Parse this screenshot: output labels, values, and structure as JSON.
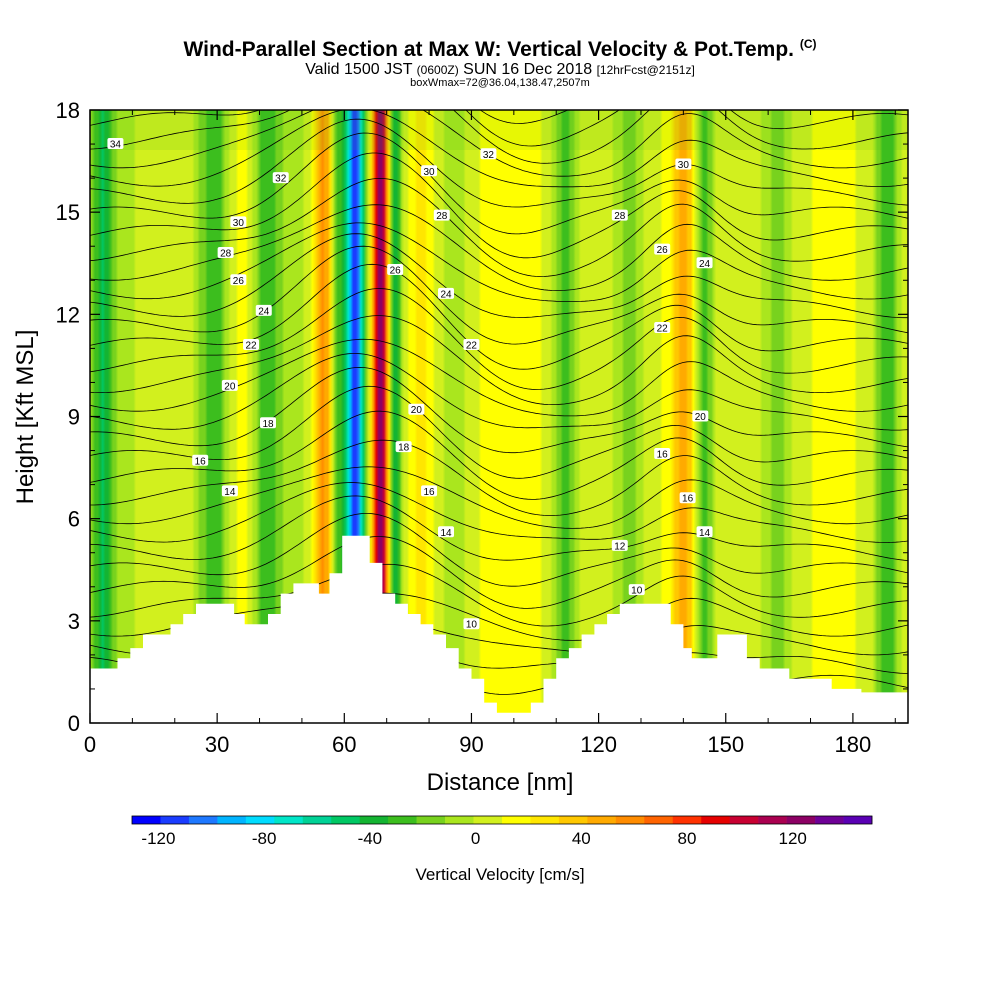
{
  "chart_data": {
    "type": "heatmap",
    "title": "Wind-Parallel Section at Max W: Vertical Velocity & Pot.Temp.",
    "title_mark": "(C)",
    "subtitle_main_a": "Valid 1500 JST",
    "subtitle_small_a": "(0600Z)",
    "subtitle_main_b": "SUN 16 Dec 2018",
    "subtitle_small_b": "[12hrFcst@2151z]",
    "subtitle_line2": "boxWmax=72@36.04,138.47,2507m",
    "xlabel": "Distance [nm]",
    "ylabel": "Height [Kft MSL]",
    "xlim": [
      0,
      193
    ],
    "ylim": [
      0,
      18
    ],
    "x_ticks": [
      "0",
      "30",
      "60",
      "90",
      "120",
      "150",
      "180"
    ],
    "y_ticks": [
      "0",
      "3",
      "6",
      "9",
      "12",
      "15",
      "18"
    ],
    "colorbar": {
      "label": "Vertical Velocity [cm/s]",
      "tick_labels": [
        "-120",
        "-80",
        "-40",
        "0",
        "40",
        "80",
        "120"
      ],
      "min": -130,
      "max": 150,
      "colors": [
        "#0000ff",
        "#1a3cff",
        "#1e78ff",
        "#00b4ff",
        "#00dcff",
        "#00e6c8",
        "#00d296",
        "#00c864",
        "#14b432",
        "#3cbe1e",
        "#78d21e",
        "#aae61e",
        "#d2f01e",
        "#ffff00",
        "#ffe600",
        "#ffc800",
        "#ffaa00",
        "#ff8c00",
        "#ff6400",
        "#ff3200",
        "#e60000",
        "#c80032",
        "#aa0050",
        "#8c0064",
        "#6e0096",
        "#5a00b4"
      ]
    },
    "theta_contour_labels": [
      {
        "x": 6,
        "y": 17.0,
        "text": "34"
      },
      {
        "x": 45,
        "y": 16.0,
        "text": "32"
      },
      {
        "x": 94,
        "y": 16.7,
        "text": "32"
      },
      {
        "x": 80,
        "y": 16.2,
        "text": "30"
      },
      {
        "x": 140,
        "y": 16.4,
        "text": "30"
      },
      {
        "x": 35,
        "y": 14.7,
        "text": "30"
      },
      {
        "x": 83,
        "y": 14.9,
        "text": "28"
      },
      {
        "x": 125,
        "y": 14.9,
        "text": "28"
      },
      {
        "x": 32,
        "y": 13.8,
        "text": "28"
      },
      {
        "x": 135,
        "y": 13.9,
        "text": "26"
      },
      {
        "x": 72,
        "y": 13.3,
        "text": "26"
      },
      {
        "x": 35,
        "y": 13.0,
        "text": "26"
      },
      {
        "x": 145,
        "y": 13.5,
        "text": "24"
      },
      {
        "x": 84,
        "y": 12.6,
        "text": "24"
      },
      {
        "x": 41,
        "y": 12.1,
        "text": "24"
      },
      {
        "x": 135,
        "y": 11.6,
        "text": "22"
      },
      {
        "x": 38,
        "y": 11.1,
        "text": "22"
      },
      {
        "x": 90,
        "y": 11.1,
        "text": "22"
      },
      {
        "x": 33,
        "y": 9.9,
        "text": "20"
      },
      {
        "x": 77,
        "y": 9.2,
        "text": "20"
      },
      {
        "x": 144,
        "y": 9.0,
        "text": "20"
      },
      {
        "x": 42,
        "y": 8.8,
        "text": "18"
      },
      {
        "x": 74,
        "y": 8.1,
        "text": "18"
      },
      {
        "x": 135,
        "y": 7.9,
        "text": "16"
      },
      {
        "x": 26,
        "y": 7.7,
        "text": "16"
      },
      {
        "x": 80,
        "y": 6.8,
        "text": "16"
      },
      {
        "x": 141,
        "y": 6.6,
        "text": "16"
      },
      {
        "x": 33,
        "y": 6.8,
        "text": "14"
      },
      {
        "x": 84,
        "y": 5.6,
        "text": "14"
      },
      {
        "x": 145,
        "y": 5.6,
        "text": "14"
      },
      {
        "x": 125,
        "y": 5.2,
        "text": "12"
      },
      {
        "x": 129,
        "y": 3.9,
        "text": "10"
      },
      {
        "x": 90,
        "y": 2.9,
        "text": "10"
      }
    ],
    "velocity_bands": [
      {
        "center": 3,
        "width": 2.5,
        "value": -35
      },
      {
        "center": 7,
        "width": 6,
        "value": -5
      },
      {
        "center": 18,
        "width": 4,
        "value": 10
      },
      {
        "center": 29,
        "width": 4,
        "value": -30
      },
      {
        "center": 36,
        "width": 3,
        "value": 20
      },
      {
        "center": 42,
        "width": 4,
        "value": -30
      },
      {
        "center": 49,
        "width": 3,
        "value": -5
      },
      {
        "center": 55,
        "width": 2.2,
        "value": 55
      },
      {
        "center": 58.5,
        "width": 1.5,
        "value": -25
      },
      {
        "center": 62.5,
        "width": 2.3,
        "value": -115
      },
      {
        "center": 68.5,
        "width": 1.8,
        "value": 125
      },
      {
        "center": 72,
        "width": 1.5,
        "value": -40
      },
      {
        "center": 78,
        "width": 2,
        "value": 25
      },
      {
        "center": 86,
        "width": 3,
        "value": -10
      },
      {
        "center": 100,
        "width": 5,
        "value": 15
      },
      {
        "center": 112,
        "width": 3,
        "value": -25
      },
      {
        "center": 119,
        "width": 4,
        "value": 10
      },
      {
        "center": 127,
        "width": 4,
        "value": -15
      },
      {
        "center": 140,
        "width": 2.5,
        "value": 50
      },
      {
        "center": 145,
        "width": 2,
        "value": -30
      },
      {
        "center": 152,
        "width": 3,
        "value": 10
      },
      {
        "center": 162,
        "width": 4,
        "value": -15
      },
      {
        "center": 175,
        "width": 3,
        "value": 15
      },
      {
        "center": 188,
        "width": 3,
        "value": -30
      }
    ],
    "terrain": [
      [
        0,
        1.6
      ],
      [
        6.5,
        1.6
      ],
      [
        6.5,
        1.9
      ],
      [
        9.5,
        1.9
      ],
      [
        9.5,
        2.2
      ],
      [
        12.5,
        2.2
      ],
      [
        12.5,
        2.6
      ],
      [
        19,
        2.6
      ],
      [
        19,
        2.9
      ],
      [
        22,
        2.9
      ],
      [
        22,
        3.2
      ],
      [
        25,
        3.2
      ],
      [
        25,
        3.5
      ],
      [
        34,
        3.5
      ],
      [
        34,
        3.2
      ],
      [
        36.5,
        3.2
      ],
      [
        36.5,
        2.9
      ],
      [
        42,
        2.9
      ],
      [
        42,
        3.2
      ],
      [
        45,
        3.2
      ],
      [
        45,
        3.8
      ],
      [
        48,
        3.8
      ],
      [
        48,
        4.1
      ],
      [
        54,
        4.1
      ],
      [
        54,
        3.8
      ],
      [
        56.5,
        3.8
      ],
      [
        56.5,
        4.4
      ],
      [
        59.5,
        4.4
      ],
      [
        59.5,
        5.5
      ],
      [
        66,
        5.5
      ],
      [
        66,
        4.7
      ],
      [
        69,
        4.7
      ],
      [
        69,
        3.8
      ],
      [
        72,
        3.8
      ],
      [
        72,
        3.5
      ],
      [
        75,
        3.5
      ],
      [
        75,
        3.2
      ],
      [
        78,
        3.2
      ],
      [
        78,
        2.9
      ],
      [
        81,
        2.9
      ],
      [
        81,
        2.6
      ],
      [
        84,
        2.6
      ],
      [
        84,
        2.2
      ],
      [
        87,
        2.2
      ],
      [
        87,
        1.6
      ],
      [
        90,
        1.6
      ],
      [
        90,
        1.3
      ],
      [
        93,
        1.3
      ],
      [
        93,
        0.6
      ],
      [
        96,
        0.6
      ],
      [
        96,
        0.3
      ],
      [
        104,
        0.3
      ],
      [
        104,
        0.6
      ],
      [
        107,
        0.6
      ],
      [
        107,
        1.3
      ],
      [
        110,
        1.3
      ],
      [
        110,
        1.9
      ],
      [
        113,
        1.9
      ],
      [
        113,
        2.2
      ],
      [
        116,
        2.2
      ],
      [
        116,
        2.6
      ],
      [
        119,
        2.6
      ],
      [
        119,
        2.9
      ],
      [
        122,
        2.9
      ],
      [
        122,
        3.2
      ],
      [
        125,
        3.2
      ],
      [
        125,
        3.5
      ],
      [
        137,
        3.5
      ],
      [
        137,
        2.9
      ],
      [
        140,
        2.9
      ],
      [
        140,
        2.2
      ],
      [
        142,
        2.2
      ],
      [
        142,
        1.9
      ],
      [
        148,
        1.9
      ],
      [
        148,
        2.6
      ],
      [
        155,
        2.6
      ],
      [
        155,
        1.9
      ],
      [
        158,
        1.9
      ],
      [
        158,
        1.6
      ],
      [
        165,
        1.6
      ],
      [
        165,
        1.3
      ],
      [
        175,
        1.3
      ],
      [
        175,
        1.0
      ],
      [
        182,
        1.0
      ],
      [
        182,
        0.9
      ],
      [
        193,
        0.9
      ]
    ]
  }
}
